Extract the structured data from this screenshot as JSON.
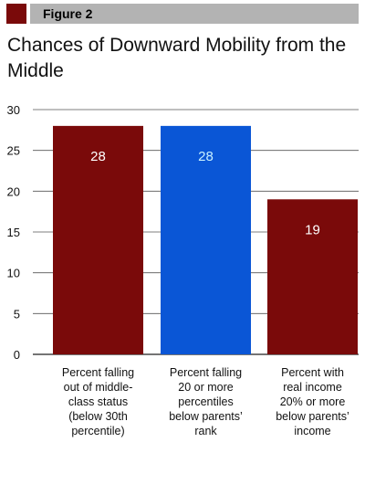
{
  "figure_label": "Figure 2",
  "title": "Chances of Downward Mobility from the Middle",
  "colors": {
    "swatch": "#7a0a0a",
    "header_band": "#b3b3b3",
    "bar_dark_red": "#7a0a0a",
    "bar_blue": "#0a56d6",
    "value_white": "#ffffff",
    "value_cyan": "#c8f0ff"
  },
  "chart_data": {
    "type": "bar",
    "categories": [
      [
        "Percent falling",
        "out of middle-",
        "class status",
        "(below 30th",
        "percentile)"
      ],
      [
        "Percent falling",
        "20 or more",
        "percentiles",
        "below parents’",
        "rank"
      ],
      [
        "Percent with",
        "real income",
        "20% or more",
        "below parents’",
        "income"
      ]
    ],
    "values": [
      28,
      28,
      19
    ],
    "bar_colors": [
      "#7a0a0a",
      "#0a56d6",
      "#7a0a0a"
    ],
    "value_label_colors": [
      "#ffffff",
      "#c8f0ff",
      "#ffffff"
    ],
    "ylim": [
      0,
      30
    ],
    "yticks": [
      0,
      5,
      10,
      15,
      20,
      25,
      30
    ],
    "grid": true,
    "xlabel": "",
    "ylabel": ""
  }
}
